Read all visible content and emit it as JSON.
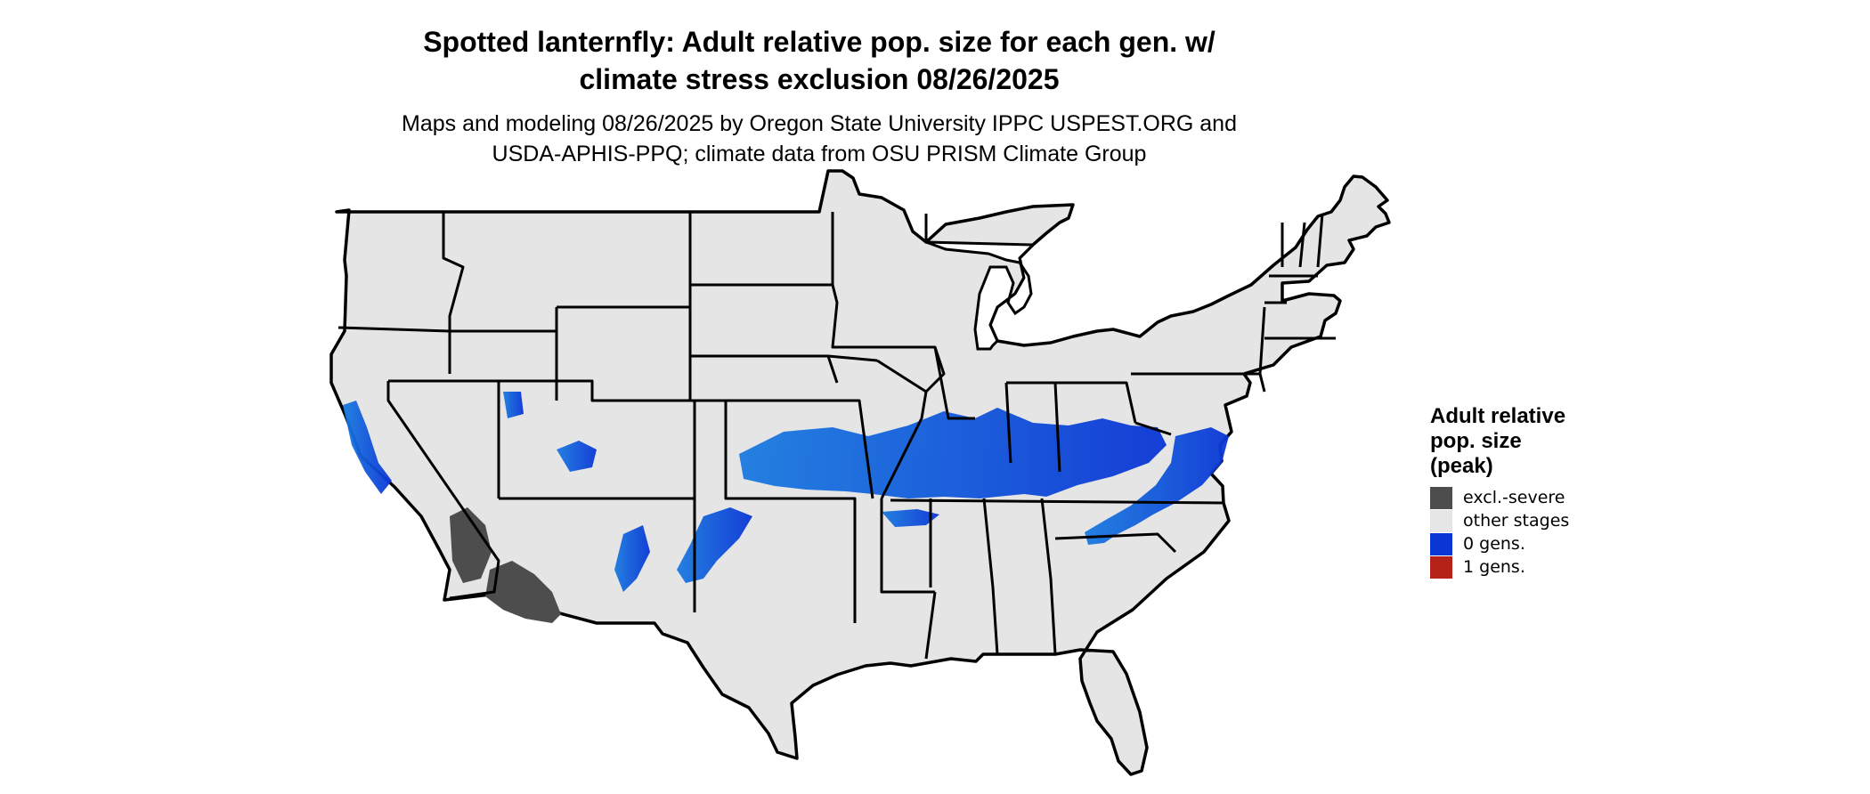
{
  "title": [
    "Spotted lanternfly: Adult relative pop. size for each gen. w/",
    "climate stress exclusion 08/26/2025"
  ],
  "subtitle": [
    "Maps and modeling 08/26/2025 by Oregon State University IPPC USPEST.ORG and",
    "USDA-APHIS-PPQ; climate data from OSU PRISM Climate Group"
  ],
  "legend": {
    "title": [
      "Adult relative",
      "pop. size",
      "(peak)"
    ],
    "items": [
      {
        "label": "excl.-severe",
        "color": "#4d4d4d"
      },
      {
        "label": "other stages",
        "color": "#e6e6e6"
      },
      {
        "label": "0 gens.",
        "color": "#0a36d6"
      },
      {
        "label": "1 gens.",
        "color": "#b52218"
      }
    ]
  },
  "map": {
    "land_color": "#e5e5e5",
    "border_color": "#000000",
    "zones": [
      "excl.-severe",
      "0 gens."
    ]
  }
}
